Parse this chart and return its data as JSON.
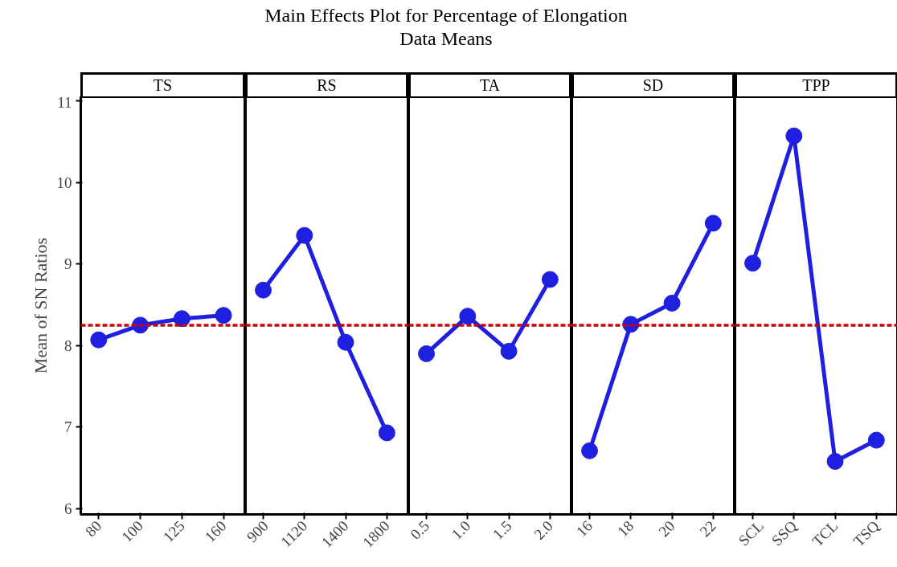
{
  "chart_data": [
    {
      "type": "line",
      "ylabel": "Mean of SN Ratios",
      "annotations": [
        "TS"
      ],
      "categories": [
        "80",
        "100",
        "125",
        "160"
      ],
      "series": [
        {
          "color": "#1f1fe0",
          "values": [
            8.07,
            8.25,
            8.33,
            8.37
          ]
        }
      ],
      "ylim": [
        5.93,
        11.05
      ],
      "yticks": [
        6,
        7,
        8,
        9,
        10,
        11
      ],
      "ref_lines": [
        {
          "axis": "y",
          "value": 8.25,
          "color": "#cc0000",
          "line_style": "dashed"
        }
      ],
      "marker": "circle",
      "grid": false
    },
    {
      "type": "line",
      "annotations": [
        "RS"
      ],
      "categories": [
        "900",
        "1120",
        "1400",
        "1800"
      ],
      "series": [
        {
          "color": "#1f1fe0",
          "values": [
            8.68,
            9.35,
            8.04,
            6.93
          ]
        }
      ],
      "ylim": [
        5.93,
        11.05
      ],
      "tick_labels": "x",
      "ref_lines": [
        {
          "axis": "y",
          "value": 8.25,
          "color": "#cc0000",
          "line_style": "dashed"
        }
      ],
      "marker": "circle",
      "grid": false
    },
    {
      "type": "line",
      "title": "Main Effects Plot for Percentage of Elongation",
      "subtitle": "Data Means",
      "annotations": [
        "TA"
      ],
      "categories": [
        "0.5",
        "1.0",
        "1.5",
        "2.0"
      ],
      "series": [
        {
          "color": "#1f1fe0",
          "values": [
            7.9,
            8.36,
            7.93,
            8.81
          ]
        }
      ],
      "ylim": [
        5.93,
        11.05
      ],
      "tick_labels": "x",
      "ref_lines": [
        {
          "axis": "y",
          "value": 8.25,
          "color": "#cc0000",
          "line_style": "dashed"
        }
      ],
      "marker": "circle",
      "grid": false
    },
    {
      "type": "line",
      "annotations": [
        "SD"
      ],
      "categories": [
        "16",
        "18",
        "20",
        "22"
      ],
      "series": [
        {
          "color": "#1f1fe0",
          "values": [
            6.71,
            8.26,
            8.52,
            9.5
          ]
        }
      ],
      "ylim": [
        5.93,
        11.05
      ],
      "tick_labels": "x",
      "ref_lines": [
        {
          "axis": "y",
          "value": 8.25,
          "color": "#cc0000",
          "line_style": "dashed"
        }
      ],
      "marker": "circle",
      "grid": false
    },
    {
      "type": "line",
      "annotations": [
        "TPP"
      ],
      "categories": [
        "SCL",
        "SSQ",
        "TCL",
        "TSQ"
      ],
      "series": [
        {
          "color": "#1f1fe0",
          "values": [
            9.01,
            10.57,
            6.58,
            6.84
          ]
        }
      ],
      "ylim": [
        5.93,
        11.05
      ],
      "tick_labels": "x",
      "ref_lines": [
        {
          "axis": "y",
          "value": 8.25,
          "color": "#cc0000",
          "line_style": "dashed"
        }
      ],
      "marker": "circle",
      "grid": false
    }
  ]
}
